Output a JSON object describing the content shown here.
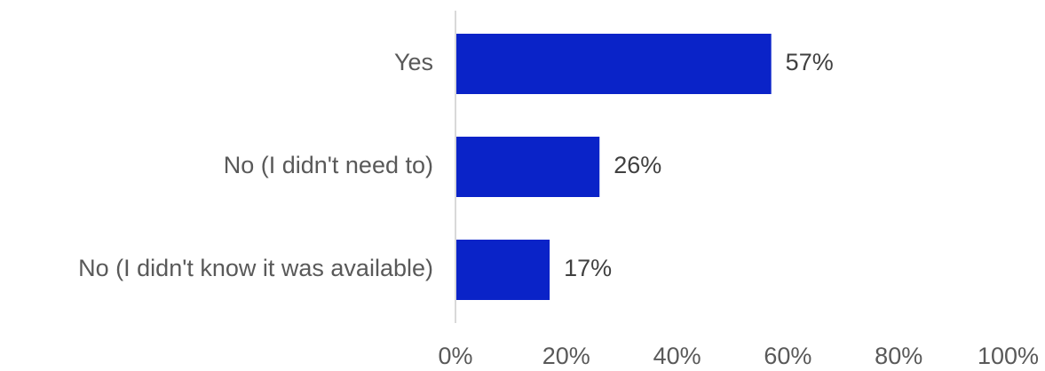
{
  "chart_data": {
    "type": "bar",
    "orientation": "horizontal",
    "categories": [
      "Yes",
      "No (I didn't need to)",
      "No (I didn't know it was available)"
    ],
    "values": [
      57,
      26,
      17
    ],
    "data_labels": [
      "57%",
      "26%",
      "17%"
    ],
    "xlim": [
      0,
      100
    ],
    "x_ticks": [
      0,
      20,
      40,
      60,
      80,
      100
    ],
    "x_tick_labels": [
      "0%",
      "20%",
      "40%",
      "60%",
      "80%",
      "100%"
    ],
    "grid": false,
    "legend": "none",
    "colors": {
      "bar": "#0A23C8",
      "axis": "#D9D9D9"
    }
  }
}
